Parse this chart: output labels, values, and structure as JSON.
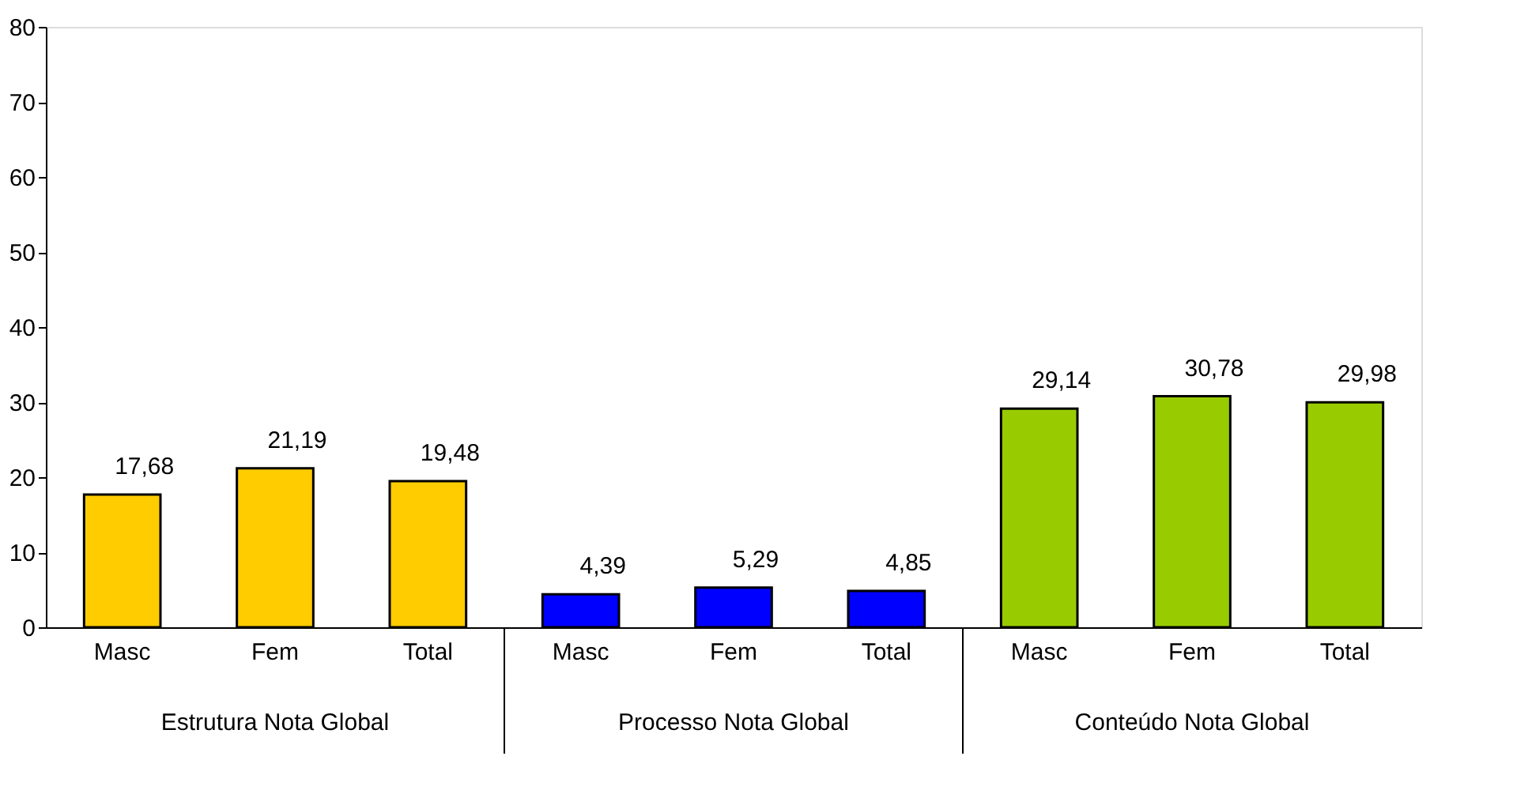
{
  "chart_data": {
    "type": "bar",
    "categories": [
      "Masc",
      "Fem",
      "Total",
      "Masc",
      "Fem",
      "Total",
      "Masc",
      "Fem",
      "Total"
    ],
    "values": [
      17.68,
      21.19,
      19.48,
      4.39,
      5.29,
      4.85,
      29.14,
      30.78,
      29.98
    ],
    "colors": [
      "#ffcc00",
      "#ffcc00",
      "#ffcc00",
      "#0000ff",
      "#0000ff",
      "#0000ff",
      "#99cc00",
      "#99cc00",
      "#99cc00"
    ],
    "value_labels": [
      "17,68",
      "21,19",
      "19,48",
      "4,39",
      "5,29",
      "4,85",
      "29,14",
      "30,78",
      "29,98"
    ],
    "annotations": [
      "Estrutura Nota Global",
      "Processo Nota Global",
      "Conteúdo Nota Global"
    ],
    "ylim": [
      0,
      80
    ],
    "yticks": [
      0,
      10,
      20,
      30,
      40,
      50,
      60,
      70,
      80
    ]
  }
}
